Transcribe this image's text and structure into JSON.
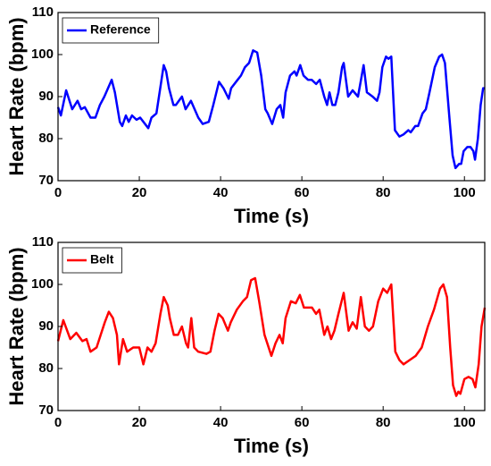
{
  "chart_data": [
    {
      "type": "line",
      "xlabel": "Time (s)",
      "ylabel": "Heart Rate (bpm)",
      "x": [
        0,
        0.7,
        2,
        3.5,
        4.8,
        5.7,
        6.6,
        8,
        9.2,
        10.3,
        11.4,
        13.2,
        14,
        15.2,
        15.8,
        16.7,
        17.4,
        18.2,
        19.3,
        20.2,
        22.2,
        23,
        24.2,
        25.3,
        26,
        26.6,
        27.3,
        28.4,
        29,
        30.5,
        31.4,
        32.7,
        34.5,
        35.6,
        37.1,
        38.2,
        39.6,
        40.7,
        42,
        42.6,
        44.2,
        45,
        46,
        47,
        48,
        49,
        50,
        51,
        51.6,
        52.7,
        53.8,
        54.7,
        55.4,
        56,
        57.1,
        58.2,
        58.7,
        59.6,
        60.4,
        61.5,
        62.4,
        63.5,
        64.4,
        65.5,
        66.2,
        66.8,
        67.5,
        68.2,
        69,
        69.9,
        70.3,
        71.4,
        72.5,
        73.8,
        75.2,
        76,
        77.4,
        78.5,
        79.1,
        79.8,
        80.7,
        81.3,
        82,
        82.9,
        84,
        85,
        86.2,
        86.8,
        87.9,
        88.6,
        89.7,
        90.5,
        91.4,
        92.7,
        93.8,
        94.5,
        95.2,
        96.3,
        97.1,
        97.8,
        98.7,
        99.2,
        99.8,
        100.7,
        101.5,
        102.2,
        102.6,
        103.3,
        104,
        104.6,
        105
      ],
      "series": [
        {
          "name": "Reference",
          "color": "#0000ff",
          "values": [
            87.5,
            85.5,
            91.5,
            87,
            89,
            87,
            87.5,
            85,
            85,
            88,
            90,
            94,
            91,
            84,
            83,
            85.5,
            84,
            85.5,
            84.5,
            85,
            82.5,
            85,
            86,
            93,
            97.5,
            96,
            92,
            88,
            88,
            90,
            87,
            89,
            85,
            83.5,
            84,
            88,
            93.5,
            92,
            89.5,
            92,
            94,
            95,
            97,
            98,
            101,
            100.5,
            95,
            87,
            86,
            83.5,
            87,
            88,
            85,
            91,
            95,
            96,
            95,
            97.5,
            95,
            94,
            94,
            93,
            94,
            90,
            88,
            91,
            88,
            88,
            91,
            97,
            98,
            90,
            91.5,
            90,
            97.5,
            91,
            90,
            89,
            91,
            97,
            99.5,
            99,
            99.5,
            82,
            80.5,
            81,
            82,
            81.5,
            83,
            83,
            86,
            87,
            91,
            97,
            99.5,
            100,
            98,
            85,
            76,
            73,
            74,
            74,
            77,
            78,
            78,
            77,
            75,
            80,
            88,
            92,
            92
          ]
        }
      ],
      "xlim": [
        0,
        105
      ],
      "ylim": [
        70,
        110
      ],
      "xticks": [
        0,
        20,
        40,
        60,
        80,
        100
      ],
      "yticks": [
        70,
        80,
        90,
        100,
        110
      ],
      "legend": "upper left"
    },
    {
      "type": "line",
      "xlabel": "Time (s)",
      "ylabel": "Heart Rate (bpm)",
      "x": [
        0,
        1.3,
        3,
        4.5,
        6,
        7,
        8,
        9.5,
        10.5,
        11.5,
        12.5,
        13.5,
        14.5,
        15,
        16,
        17,
        18.5,
        20,
        21,
        22,
        23,
        24,
        25.2,
        26,
        27,
        27.5,
        28.5,
        29.5,
        30.5,
        31.5,
        32,
        32.8,
        33.5,
        34.5,
        36.5,
        37.5,
        38.5,
        39.5,
        40.5,
        41.8,
        42.5,
        44,
        45.5,
        46.5,
        47.5,
        48.5,
        49.5,
        50.8,
        51.5,
        52.5,
        53.5,
        54.5,
        55.3,
        56,
        57.3,
        58.5,
        59.5,
        60.5,
        62.5,
        63.5,
        64.3,
        65.5,
        66.3,
        67.2,
        68,
        69,
        70.3,
        71.5,
        72.5,
        73.5,
        74.5,
        75.5,
        76.5,
        77.5,
        78.8,
        80,
        81,
        82,
        83,
        84,
        85,
        86.5,
        88,
        89.5,
        91,
        92.5,
        94,
        94.8,
        95.7,
        96.5,
        97.2,
        98,
        98.5,
        99,
        100,
        101,
        102,
        102.7,
        103.5,
        104.2,
        105
      ],
      "series": [
        {
          "name": "Belt",
          "color": "#ff0000",
          "values": [
            86.5,
            91.5,
            87,
            88.5,
            86.5,
            87,
            84,
            85,
            88,
            91,
            93.5,
            92,
            88,
            81,
            87,
            84,
            85,
            85,
            81,
            85,
            84,
            86,
            93,
            97,
            95,
            92,
            88,
            88,
            90,
            86,
            85,
            92,
            85,
            84,
            83.5,
            84,
            89,
            93,
            92,
            89,
            91,
            94,
            96,
            97,
            101,
            101.5,
            96,
            88,
            86,
            83,
            86,
            88,
            86,
            92,
            96,
            95.5,
            97.5,
            94.5,
            94.5,
            93,
            94,
            88,
            90,
            87,
            89,
            93,
            98,
            89,
            91,
            89.5,
            97,
            90,
            89,
            90,
            96,
            99,
            98,
            100,
            84,
            82,
            81,
            82,
            83,
            85,
            90,
            94,
            99,
            100,
            97,
            85,
            76,
            73.5,
            74.5,
            74,
            77.5,
            78,
            77.5,
            75.5,
            81,
            90,
            94.5
          ]
        }
      ],
      "xlim": [
        0,
        105
      ],
      "ylim": [
        70,
        110
      ],
      "xticks": [
        0,
        20,
        40,
        60,
        80,
        100
      ],
      "yticks": [
        70,
        80,
        90,
        100,
        110
      ],
      "legend": "upper left"
    }
  ]
}
